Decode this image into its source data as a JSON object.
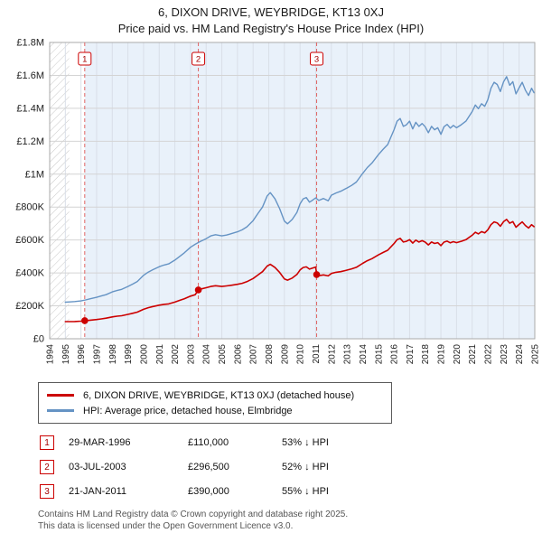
{
  "title": "6, DIXON DRIVE, WEYBRIDGE, KT13 0XJ",
  "subtitle": "Price paid vs. HM Land Registry's House Price Index (HPI)",
  "legend": {
    "items": [
      {
        "label": "6, DIXON DRIVE, WEYBRIDGE, KT13 0XJ (detached house)",
        "color": "#cc0000"
      },
      {
        "label": "HPI: Average price, detached house, Elmbridge",
        "color": "#6593c4"
      }
    ]
  },
  "transactions": [
    {
      "num": "1",
      "date": "29-MAR-1996",
      "price": "£110,000",
      "hpi": "53% ↓ HPI"
    },
    {
      "num": "2",
      "date": "03-JUL-2003",
      "price": "£296,500",
      "hpi": "52% ↓ HPI"
    },
    {
      "num": "3",
      "date": "21-JAN-2011",
      "price": "£390,000",
      "hpi": "55% ↓ HPI"
    }
  ],
  "footer": {
    "line1": "Contains HM Land Registry data © Crown copyright and database right 2025.",
    "line2": "This data is licensed under the Open Government Licence v3.0."
  },
  "chart_data": {
    "type": "line",
    "title": "6, DIXON DRIVE, WEYBRIDGE, KT13 0XJ — Price paid vs. HPI",
    "xlabel": "",
    "ylabel": "",
    "values_unit": "GBP thousands",
    "x_range": [
      1994,
      2025
    ],
    "y_range": [
      0,
      1800
    ],
    "grid": true,
    "legend_position": "bottom",
    "x_ticks": [
      1994,
      1995,
      1996,
      1997,
      1998,
      1999,
      2000,
      2001,
      2002,
      2003,
      2004,
      2005,
      2006,
      2007,
      2008,
      2009,
      2010,
      2011,
      2012,
      2013,
      2014,
      2015,
      2016,
      2017,
      2018,
      2019,
      2020,
      2021,
      2022,
      2023,
      2024,
      2025
    ],
    "y_ticks": [
      {
        "v": 0,
        "label": "£0"
      },
      {
        "v": 200,
        "label": "£200K"
      },
      {
        "v": 400,
        "label": "£400K"
      },
      {
        "v": 600,
        "label": "£600K"
      },
      {
        "v": 800,
        "label": "£800K"
      },
      {
        "v": 1000,
        "label": "£1M"
      },
      {
        "v": 1200,
        "label": "£1.2M"
      },
      {
        "v": 1400,
        "label": "£1.4M"
      },
      {
        "v": 1600,
        "label": "£1.6M"
      },
      {
        "v": 1800,
        "label": "£1.8M"
      }
    ],
    "regions": {
      "shaded": [
        1996.24,
        2025
      ],
      "hatched": [
        [
          1994,
          1995.25
        ]
      ]
    },
    "colors": {
      "property": "#cc0000",
      "hpi": "#6593c4",
      "shade": "#e9f1fa",
      "grid_v": "#d9dfe8",
      "grid_h": "#d4d4d4",
      "border": "#aaaaaa",
      "sale_line": "#e06666",
      "marker": "#cc0000",
      "sale_box_border": "#cc0000",
      "sale_box_text": "#a40000",
      "hatch": "#c8c8c8",
      "axis_text": "#222222"
    },
    "sales": [
      {
        "n": "1",
        "x": 1996.24,
        "y": 110,
        "date": "29-MAR-1996",
        "price": "£110,000",
        "pct_vs_hpi": "53% ↓ HPI"
      },
      {
        "n": "2",
        "x": 2003.5,
        "y": 296.5,
        "date": "03-JUL-2003",
        "price": "£296,500",
        "pct_vs_hpi": "52% ↓ HPI"
      },
      {
        "n": "3",
        "x": 2011.06,
        "y": 390,
        "date": "21-JAN-2011",
        "price": "£390,000",
        "pct_vs_hpi": "55% ↓ HPI"
      }
    ],
    "series": [
      {
        "name": "6, DIXON DRIVE, WEYBRIDGE, KT13 0XJ (detached house)",
        "color": "#cc0000",
        "width": 1.6,
        "points": [
          [
            1995,
            104
          ],
          [
            1995.3,
            104
          ],
          [
            1995.6,
            105
          ],
          [
            1996,
            107
          ],
          [
            1996.24,
            110
          ],
          [
            1996.3,
            110
          ],
          [
            1996.6,
            113
          ],
          [
            1997,
            117
          ],
          [
            1997.3,
            121
          ],
          [
            1997.6,
            125
          ],
          [
            1998,
            133
          ],
          [
            1998.3,
            137
          ],
          [
            1998.6,
            140
          ],
          [
            1999,
            148
          ],
          [
            1999.3,
            155
          ],
          [
            1999.6,
            162
          ],
          [
            2000,
            179
          ],
          [
            2000.3,
            189
          ],
          [
            2000.6,
            196
          ],
          [
            2001,
            204
          ],
          [
            2001.3,
            209
          ],
          [
            2001.6,
            212
          ],
          [
            2002,
            223
          ],
          [
            2002.3,
            233
          ],
          [
            2002.6,
            243
          ],
          [
            2003,
            259
          ],
          [
            2003.3,
            268
          ],
          [
            2003.5,
            296.5
          ],
          [
            2003.6,
            301
          ],
          [
            2004,
            310
          ],
          [
            2004.3,
            318
          ],
          [
            2004.6,
            322
          ],
          [
            2005,
            318
          ],
          [
            2005.3,
            321
          ],
          [
            2005.6,
            325
          ],
          [
            2006,
            331
          ],
          [
            2006.3,
            337
          ],
          [
            2006.6,
            347
          ],
          [
            2007,
            366
          ],
          [
            2007.3,
            387
          ],
          [
            2007.6,
            408
          ],
          [
            2007.9,
            442
          ],
          [
            2008.1,
            452
          ],
          [
            2008.4,
            433
          ],
          [
            2008.7,
            403
          ],
          [
            2009,
            364
          ],
          [
            2009.2,
            356
          ],
          [
            2009.5,
            369
          ],
          [
            2009.8,
            391
          ],
          [
            2010,
            418
          ],
          [
            2010.2,
            433
          ],
          [
            2010.4,
            437
          ],
          [
            2010.6,
            423
          ],
          [
            2010.8,
            429
          ],
          [
            2011,
            436
          ],
          [
            2011.06,
            390
          ],
          [
            2011.2,
            383
          ],
          [
            2011.5,
            388
          ],
          [
            2011.8,
            382
          ],
          [
            2012,
            397
          ],
          [
            2012.3,
            404
          ],
          [
            2012.6,
            408
          ],
          [
            2013,
            417
          ],
          [
            2013.3,
            425
          ],
          [
            2013.6,
            434
          ],
          [
            2014,
            458
          ],
          [
            2014.3,
            474
          ],
          [
            2014.6,
            487
          ],
          [
            2015,
            509
          ],
          [
            2015.3,
            524
          ],
          [
            2015.6,
            538
          ],
          [
            2016,
            578
          ],
          [
            2016.2,
            602
          ],
          [
            2016.4,
            610
          ],
          [
            2016.6,
            588
          ],
          [
            2016.8,
            592
          ],
          [
            2017,
            602
          ],
          [
            2017.2,
            581
          ],
          [
            2017.4,
            599
          ],
          [
            2017.6,
            588
          ],
          [
            2017.8,
            596
          ],
          [
            2018,
            587
          ],
          [
            2018.2,
            570
          ],
          [
            2018.4,
            588
          ],
          [
            2018.6,
            579
          ],
          [
            2018.8,
            584
          ],
          [
            2019,
            566
          ],
          [
            2019.2,
            587
          ],
          [
            2019.4,
            593
          ],
          [
            2019.6,
            583
          ],
          [
            2019.8,
            590
          ],
          [
            2020,
            584
          ],
          [
            2020.3,
            592
          ],
          [
            2020.6,
            602
          ],
          [
            2021,
            629
          ],
          [
            2021.2,
            647
          ],
          [
            2021.4,
            637
          ],
          [
            2021.6,
            651
          ],
          [
            2021.8,
            643
          ],
          [
            2022,
            662
          ],
          [
            2022.2,
            693
          ],
          [
            2022.4,
            710
          ],
          [
            2022.6,
            704
          ],
          [
            2022.8,
            684
          ],
          [
            2023,
            711
          ],
          [
            2023.2,
            725
          ],
          [
            2023.4,
            702
          ],
          [
            2023.6,
            712
          ],
          [
            2023.8,
            678
          ],
          [
            2024,
            695
          ],
          [
            2024.2,
            710
          ],
          [
            2024.4,
            688
          ],
          [
            2024.6,
            673
          ],
          [
            2024.8,
            693
          ],
          [
            2024.95,
            681
          ]
        ]
      },
      {
        "name": "HPI: Average price, detached house, Elmbridge",
        "color": "#6593c4",
        "width": 1.4,
        "points": [
          [
            1995,
            222
          ],
          [
            1995.3,
            224
          ],
          [
            1995.6,
            226
          ],
          [
            1996,
            230
          ],
          [
            1996.3,
            236
          ],
          [
            1996.6,
            243
          ],
          [
            1997,
            252
          ],
          [
            1997.3,
            260
          ],
          [
            1997.6,
            268
          ],
          [
            1998,
            285
          ],
          [
            1998.3,
            293
          ],
          [
            1998.6,
            300
          ],
          [
            1999,
            318
          ],
          [
            1999.3,
            332
          ],
          [
            1999.6,
            348
          ],
          [
            2000,
            385
          ],
          [
            2000.3,
            405
          ],
          [
            2000.6,
            420
          ],
          [
            2001,
            438
          ],
          [
            2001.3,
            448
          ],
          [
            2001.6,
            455
          ],
          [
            2002,
            478
          ],
          [
            2002.3,
            500
          ],
          [
            2002.6,
            522
          ],
          [
            2003,
            556
          ],
          [
            2003.3,
            574
          ],
          [
            2003.6,
            590
          ],
          [
            2004,
            608
          ],
          [
            2004.3,
            625
          ],
          [
            2004.6,
            632
          ],
          [
            2005,
            625
          ],
          [
            2005.3,
            630
          ],
          [
            2005.6,
            638
          ],
          [
            2006,
            650
          ],
          [
            2006.3,
            662
          ],
          [
            2006.6,
            680
          ],
          [
            2007,
            718
          ],
          [
            2007.3,
            760
          ],
          [
            2007.6,
            800
          ],
          [
            2007.9,
            868
          ],
          [
            2008.1,
            888
          ],
          [
            2008.4,
            850
          ],
          [
            2008.7,
            790
          ],
          [
            2009,
            715
          ],
          [
            2009.2,
            698
          ],
          [
            2009.5,
            725
          ],
          [
            2009.8,
            768
          ],
          [
            2010,
            820
          ],
          [
            2010.2,
            850
          ],
          [
            2010.4,
            858
          ],
          [
            2010.6,
            830
          ],
          [
            2010.8,
            842
          ],
          [
            2011,
            856
          ],
          [
            2011.2,
            840
          ],
          [
            2011.5,
            852
          ],
          [
            2011.8,
            838
          ],
          [
            2012,
            872
          ],
          [
            2012.3,
            886
          ],
          [
            2012.6,
            896
          ],
          [
            2013,
            916
          ],
          [
            2013.3,
            932
          ],
          [
            2013.6,
            952
          ],
          [
            2014,
            1005
          ],
          [
            2014.3,
            1040
          ],
          [
            2014.6,
            1068
          ],
          [
            2015,
            1118
          ],
          [
            2015.3,
            1150
          ],
          [
            2015.6,
            1180
          ],
          [
            2016,
            1268
          ],
          [
            2016.2,
            1322
          ],
          [
            2016.4,
            1338
          ],
          [
            2016.6,
            1290
          ],
          [
            2016.8,
            1300
          ],
          [
            2017,
            1322
          ],
          [
            2017.2,
            1275
          ],
          [
            2017.4,
            1315
          ],
          [
            2017.6,
            1290
          ],
          [
            2017.8,
            1308
          ],
          [
            2018,
            1288
          ],
          [
            2018.2,
            1252
          ],
          [
            2018.4,
            1290
          ],
          [
            2018.6,
            1270
          ],
          [
            2018.8,
            1282
          ],
          [
            2019,
            1242
          ],
          [
            2019.2,
            1288
          ],
          [
            2019.4,
            1302
          ],
          [
            2019.6,
            1280
          ],
          [
            2019.8,
            1296
          ],
          [
            2020,
            1282
          ],
          [
            2020.3,
            1300
          ],
          [
            2020.6,
            1322
          ],
          [
            2021,
            1380
          ],
          [
            2021.2,
            1420
          ],
          [
            2021.4,
            1398
          ],
          [
            2021.6,
            1428
          ],
          [
            2021.8,
            1412
          ],
          [
            2022,
            1452
          ],
          [
            2022.2,
            1522
          ],
          [
            2022.4,
            1558
          ],
          [
            2022.6,
            1545
          ],
          [
            2022.8,
            1502
          ],
          [
            2023,
            1560
          ],
          [
            2023.2,
            1592
          ],
          [
            2023.4,
            1540
          ],
          [
            2023.6,
            1562
          ],
          [
            2023.8,
            1488
          ],
          [
            2024,
            1525
          ],
          [
            2024.2,
            1558
          ],
          [
            2024.4,
            1510
          ],
          [
            2024.6,
            1478
          ],
          [
            2024.8,
            1522
          ],
          [
            2024.95,
            1495
          ]
        ]
      }
    ]
  }
}
